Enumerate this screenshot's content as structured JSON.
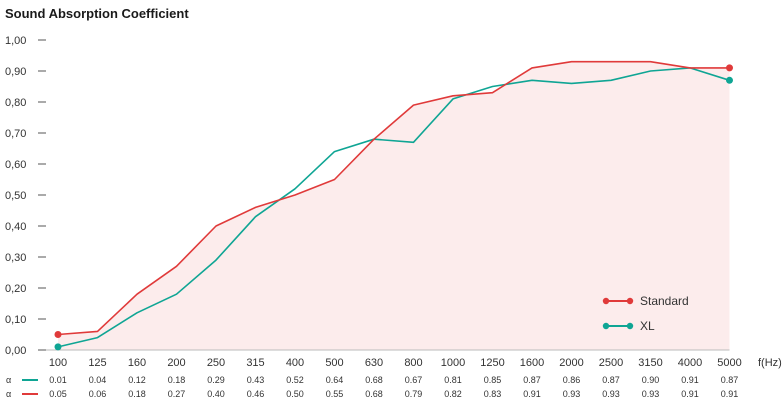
{
  "chart_data": {
    "type": "line",
    "title": "Sound Absorption Coefficient",
    "xlabel": "f(Hz)",
    "ylabel": "",
    "ylim": [
      0,
      1.0
    ],
    "y_ticks": [
      "0,00",
      "0,10",
      "0,20",
      "0,30",
      "0,40",
      "0,50",
      "0,60",
      "0,70",
      "0,80",
      "0,90",
      "1,00"
    ],
    "x_categories": [
      "100",
      "125",
      "160",
      "200",
      "250",
      "315",
      "400",
      "500",
      "630",
      "800",
      "1000",
      "1250",
      "1600",
      "2000",
      "2500",
      "3150",
      "4000",
      "5000"
    ],
    "legend_placement": "bottom-right",
    "series": [
      {
        "name": "Standard",
        "color": "#e03a3a",
        "fill": "#fcecec",
        "values": [
          0.05,
          0.06,
          0.18,
          0.27,
          0.4,
          0.46,
          0.5,
          0.55,
          0.68,
          0.79,
          0.82,
          0.83,
          0.91,
          0.93,
          0.93,
          0.93,
          0.91,
          0.91
        ]
      },
      {
        "name": "XL",
        "color": "#0fa594",
        "values": [
          0.01,
          0.04,
          0.12,
          0.18,
          0.29,
          0.43,
          0.52,
          0.64,
          0.68,
          0.67,
          0.81,
          0.85,
          0.87,
          0.86,
          0.87,
          0.9,
          0.91,
          0.87
        ]
      }
    ],
    "table_rows": [
      {
        "symbol": "α",
        "series": "XL",
        "values": [
          "0.01",
          "0.04",
          "0.12",
          "0.18",
          "0.29",
          "0.43",
          "0.52",
          "0.64",
          "0.68",
          "0.67",
          "0.81",
          "0.85",
          "0.87",
          "0.86",
          "0.87",
          "0.90",
          "0.91",
          "0.87"
        ]
      },
      {
        "symbol": "α",
        "series": "Standard",
        "values": [
          "0.05",
          "0.06",
          "0.18",
          "0.27",
          "0.40",
          "0.46",
          "0.50",
          "0.55",
          "0.68",
          "0.79",
          "0.82",
          "0.83",
          "0.91",
          "0.93",
          "0.93",
          "0.93",
          "0.91",
          "0.91"
        ]
      }
    ]
  }
}
